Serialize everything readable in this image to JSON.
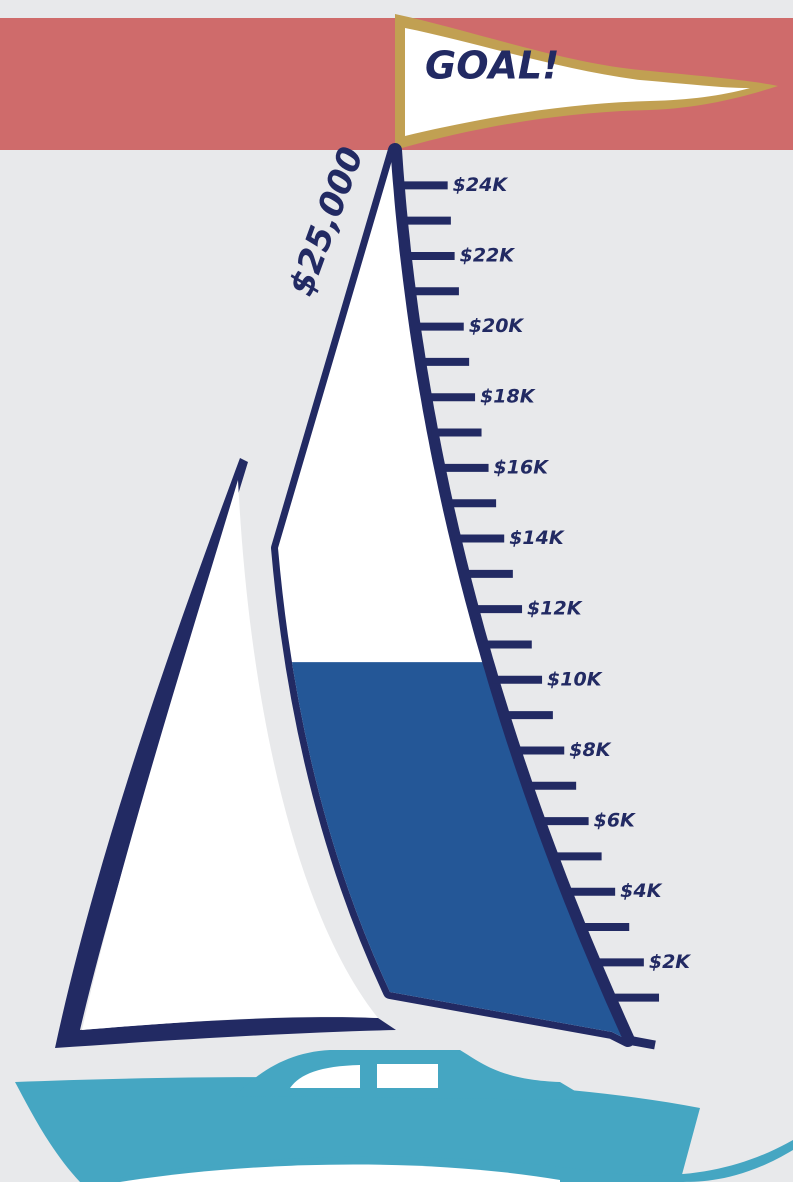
{
  "chart_data": {
    "type": "sail-thermometer",
    "title": "GOAL!",
    "goal": {
      "value": 25000,
      "label": "$25,000"
    },
    "value": 10500,
    "color": "#245797",
    "ylim": [
      0,
      25000
    ],
    "yticks": [
      {
        "value": 2000,
        "label": "$2K"
      },
      {
        "value": 4000,
        "label": "$4K"
      },
      {
        "value": 6000,
        "label": "$6K"
      },
      {
        "value": 8000,
        "label": "$8K"
      },
      {
        "value": 10000,
        "label": "$10K"
      },
      {
        "value": 12000,
        "label": "$12K"
      },
      {
        "value": 14000,
        "label": "$14K"
      },
      {
        "value": 16000,
        "label": "$16K"
      },
      {
        "value": 18000,
        "label": "$18K"
      },
      {
        "value": 20000,
        "label": "$20K"
      },
      {
        "value": 22000,
        "label": "$22K"
      },
      {
        "value": 24000,
        "label": "$24K"
      }
    ],
    "minor_ticks": [
      1000,
      3000,
      5000,
      7000,
      9000,
      11000,
      13000,
      15000,
      17000,
      19000,
      21000,
      23000
    ]
  }
}
